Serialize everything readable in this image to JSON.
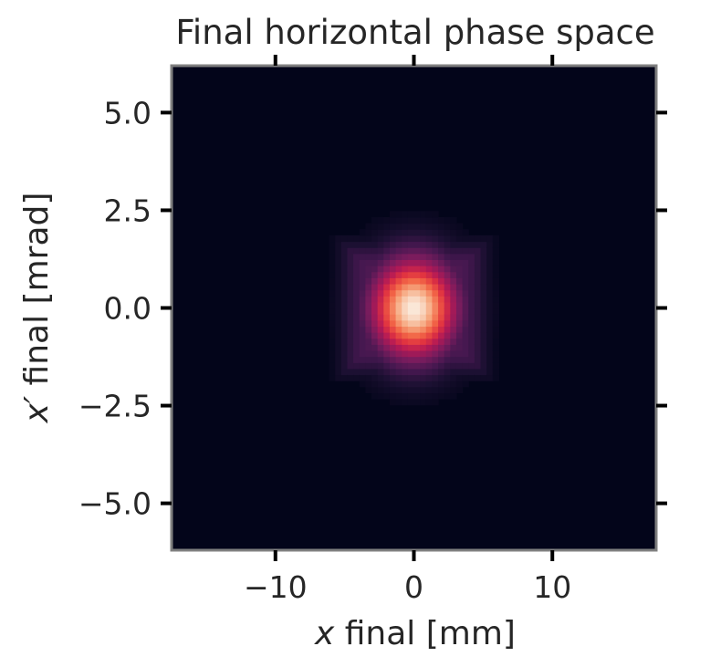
{
  "chart_data": {
    "type": "heatmap",
    "title": "Final horizontal phase space",
    "xlabel_var": "x",
    "xlabel_rest": " final [mm]",
    "ylabel_var": "x′",
    "ylabel_rest": " final [mrad]",
    "xlim": [
      -17.5,
      17.5
    ],
    "ylim": [
      -6.2,
      6.2
    ],
    "x_ticks": [
      {
        "value": -10,
        "label": "−10"
      },
      {
        "value": 0,
        "label": "0"
      },
      {
        "value": 10,
        "label": "10"
      }
    ],
    "y_ticks": [
      {
        "value": 5.0,
        "label": "5.0"
      },
      {
        "value": 2.5,
        "label": "2.5"
      },
      {
        "value": 0.0,
        "label": "0.0"
      },
      {
        "value": -2.5,
        "label": "−2.5"
      },
      {
        "value": -5.0,
        "label": "−5.0"
      }
    ],
    "colormap": "rocket",
    "background_color": "#03051a",
    "peak": {
      "x": 0,
      "y": 0
    },
    "core_sigma": {
      "x": 2.1,
      "y": 0.85
    },
    "halo_halfwidth": {
      "x": 5.0,
      "y": 1.6
    },
    "bins": {
      "x": 80,
      "y": 80
    },
    "grid": false
  }
}
